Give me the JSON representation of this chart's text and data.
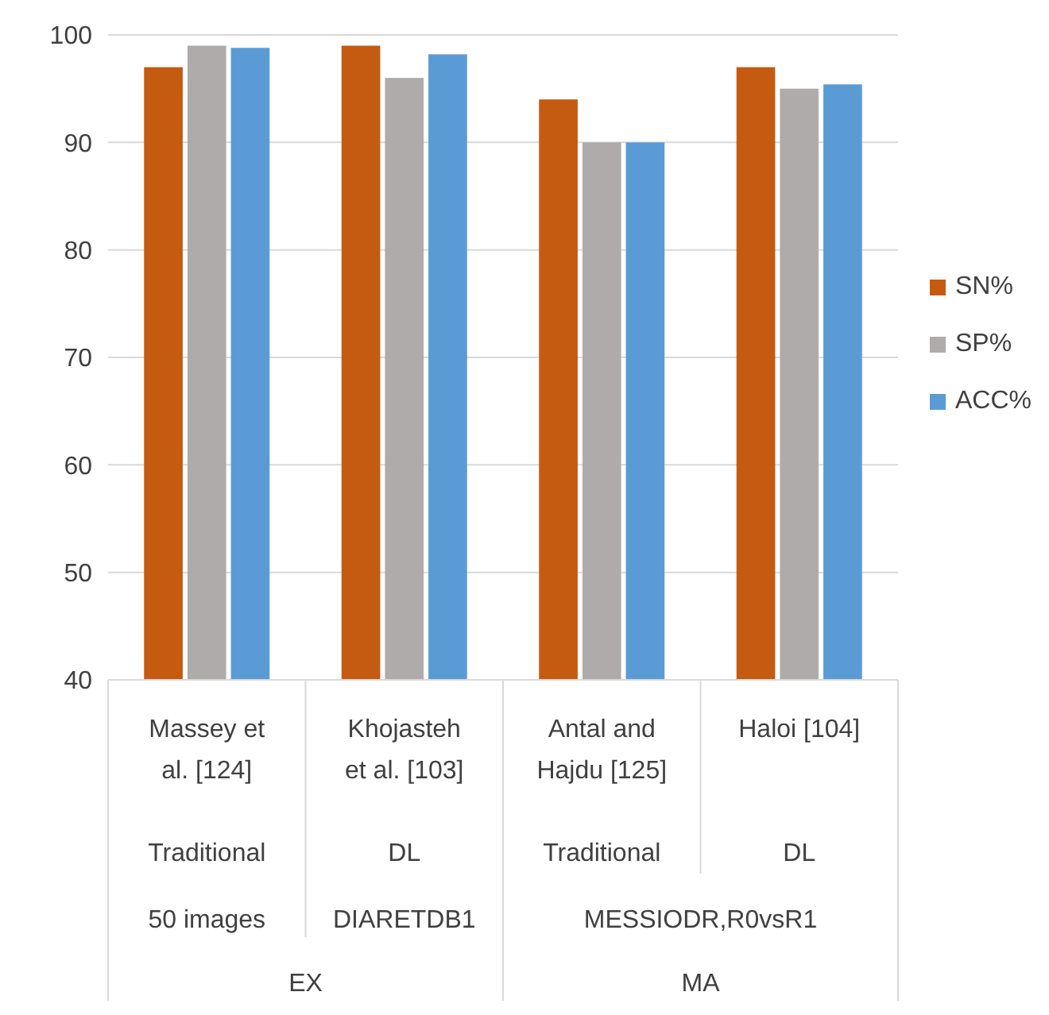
{
  "chart_data": {
    "type": "bar",
    "categories": [
      "Massey et al. [124]",
      "Khojasteh et al. [103]",
      "Antal and Hajdu [125]",
      "Haloi [104]"
    ],
    "series": [
      {
        "name": "SN%",
        "color": "#c55a11",
        "values": [
          97,
          99,
          94,
          97
        ]
      },
      {
        "name": "SP%",
        "color": "#afabab",
        "values": [
          99,
          96,
          90,
          95
        ]
      },
      {
        "name": "ACC%",
        "color": "#5b9bd5",
        "values": [
          98.8,
          98.2,
          90,
          95.4
        ]
      }
    ],
    "ylim": [
      40,
      100
    ],
    "yticks": [
      40,
      50,
      60,
      70,
      80,
      90,
      100
    ],
    "annotations": [
      "Traditional",
      "DL",
      "Traditional",
      "DL",
      "50 images",
      "DIARETDB1",
      "MESSIODR,R0vsR1",
      "EX",
      "MA"
    ],
    "grid": true,
    "legend": "right"
  }
}
